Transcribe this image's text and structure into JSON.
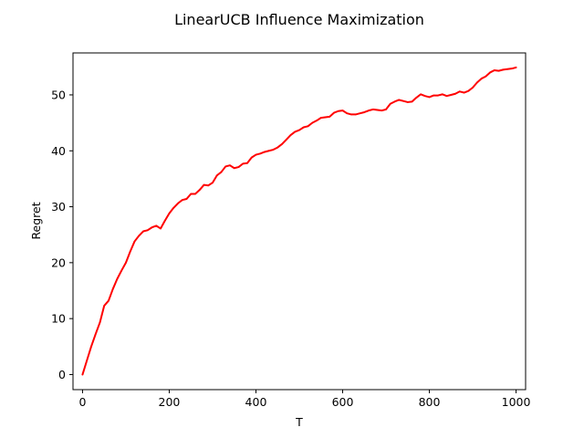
{
  "chart_data": {
    "type": "line",
    "title": "LinearUCB Influence Maximization",
    "xlabel": "T",
    "ylabel": "Regret",
    "xlim": [
      -22,
      1022
    ],
    "ylim": [
      -2.7,
      57.5
    ],
    "xticks": [
      0,
      200,
      400,
      600,
      800,
      1000
    ],
    "yticks": [
      0,
      10,
      20,
      30,
      40,
      50
    ],
    "grid": false,
    "series": [
      {
        "color": "#ff0000",
        "x": [
          0,
          10,
          20,
          30,
          40,
          50,
          60,
          70,
          80,
          90,
          100,
          110,
          120,
          130,
          140,
          150,
          160,
          170,
          180,
          190,
          200,
          210,
          220,
          230,
          240,
          250,
          260,
          270,
          280,
          290,
          300,
          310,
          320,
          330,
          340,
          350,
          360,
          370,
          380,
          390,
          400,
          410,
          420,
          430,
          440,
          450,
          460,
          470,
          480,
          490,
          500,
          510,
          520,
          530,
          540,
          550,
          560,
          570,
          580,
          590,
          600,
          610,
          620,
          630,
          640,
          650,
          660,
          670,
          680,
          690,
          700,
          710,
          720,
          730,
          740,
          750,
          760,
          770,
          780,
          790,
          800,
          810,
          820,
          830,
          840,
          850,
          860,
          870,
          880,
          890,
          900,
          910,
          920,
          930,
          940,
          950,
          960,
          970,
          980,
          990,
          1000
        ],
        "y": [
          0,
          2.5,
          5,
          7.2,
          9.3,
          12.3,
          13.2,
          15.3,
          17.1,
          18.6,
          20.0,
          22.0,
          23.8,
          24.8,
          25.6,
          25.8,
          26.3,
          26.6,
          26.1,
          27.5,
          28.8,
          29.8,
          30.6,
          31.2,
          31.4,
          32.3,
          32.3,
          33.0,
          33.9,
          33.8,
          34.3,
          35.6,
          36.2,
          37.2,
          37.4,
          36.9,
          37.1,
          37.7,
          37.8,
          38.8,
          39.3,
          39.5,
          39.8,
          40.0,
          40.2,
          40.6,
          41.2,
          42.0,
          42.8,
          43.4,
          43.7,
          44.2,
          44.4,
          45.0,
          45.4,
          45.9,
          46.0,
          46.1,
          46.8,
          47.1,
          47.2,
          46.7,
          46.5,
          46.5,
          46.7,
          46.9,
          47.2,
          47.4,
          47.3,
          47.2,
          47.4,
          48.4,
          48.8,
          49.1,
          48.9,
          48.7,
          48.8,
          49.5,
          50.1,
          49.8,
          49.6,
          49.9,
          49.9,
          50.1,
          49.8,
          50.0,
          50.2,
          50.6,
          50.4,
          50.7,
          51.3,
          52.2,
          52.9,
          53.3,
          54.0,
          54.4,
          54.3,
          54.5,
          54.6,
          54.7,
          54.9
        ]
      }
    ]
  }
}
